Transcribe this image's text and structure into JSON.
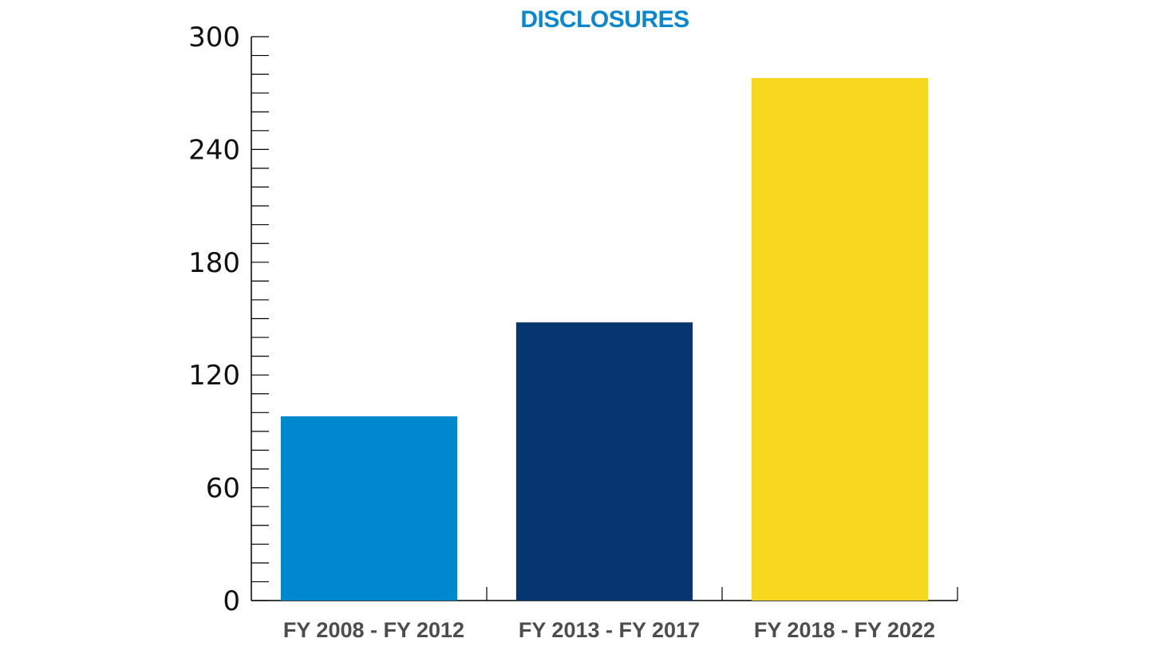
{
  "chart_data": {
    "type": "bar",
    "title": "DISCLOSURES",
    "xlabel": "",
    "ylabel": "",
    "categories": [
      "FY 2008 - FY 2012",
      "FY 2013 - FY 2017",
      "FY 2018 - FY 2022"
    ],
    "values": [
      98,
      148,
      278
    ],
    "ylim": [
      0,
      300
    ],
    "yticks": [
      "0",
      "60",
      "120",
      "180",
      "240",
      "300"
    ],
    "minor_tick_step": 10,
    "grid": false,
    "legend": "none",
    "colors": {
      "title": "#0a87cf",
      "bars": [
        "#0088cf",
        "#06366f",
        "#f8d71f"
      ],
      "axis": "#000000"
    }
  }
}
